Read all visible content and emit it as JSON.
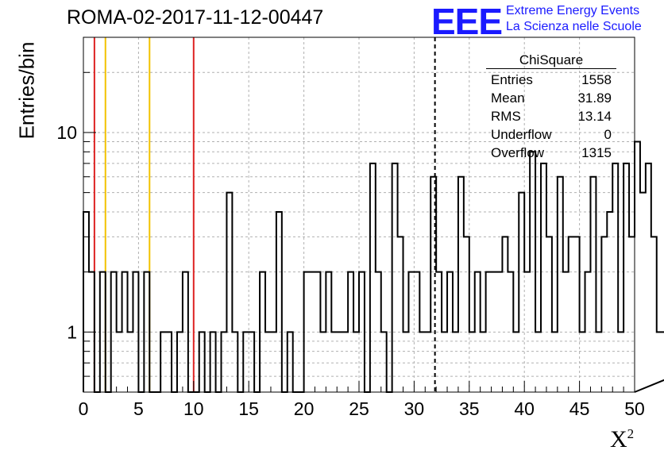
{
  "title": "ROMA-02-2017-11-12-00447",
  "logo": {
    "mark": "EEE",
    "line1": "Extreme Energy Events",
    "line2": "La Scienza nelle Scuole",
    "color": "#1a1aff"
  },
  "stats": {
    "title": "ChiSquare",
    "rows": [
      {
        "label": "Entries",
        "value": "1558"
      },
      {
        "label": "Mean",
        "value": "31.89"
      },
      {
        "label": "RMS",
        "value": "13.14"
      },
      {
        "label": "Underflow",
        "value": "0"
      },
      {
        "label": "Overflow",
        "value": "1315"
      }
    ]
  },
  "chart_data": {
    "type": "bar",
    "histogram": true,
    "title": "ROMA-02-2017-11-12-00447",
    "xlabel": "X²",
    "ylabel": "Entries/bin",
    "xlim": [
      0,
      50
    ],
    "ylim": [
      0.5,
      30
    ],
    "yscale": "log",
    "grid": true,
    "bin_width": 0.5,
    "x_ticks": [
      "0",
      "5",
      "10",
      "15",
      "20",
      "25",
      "30",
      "35",
      "40",
      "45",
      "50"
    ],
    "y_ticks": [
      "1",
      "10"
    ],
    "values": [
      4,
      2,
      0,
      2,
      0,
      2,
      1,
      2,
      1,
      2,
      0,
      2,
      0,
      0,
      1,
      1,
      0,
      1,
      2,
      0,
      0,
      1,
      0,
      1,
      0,
      1,
      5,
      1,
      0,
      1,
      1,
      0,
      2,
      1,
      1,
      4,
      0,
      1,
      0,
      0,
      2,
      2,
      2,
      1,
      2,
      1,
      1,
      1,
      2,
      1,
      2,
      0,
      7,
      2,
      1,
      0,
      7,
      3,
      1,
      2,
      2,
      1,
      1,
      6,
      2,
      1,
      2,
      1,
      6,
      3,
      1,
      2,
      1,
      2,
      2,
      2,
      3,
      2,
      1,
      5,
      2,
      8,
      1,
      7,
      3,
      1,
      6,
      2,
      3,
      3,
      1,
      2,
      6,
      1,
      3,
      4,
      7,
      1,
      7,
      3,
      9,
      5,
      7,
      3,
      1,
      1,
      0,
      0,
      1,
      2,
      6,
      1,
      2,
      2,
      7,
      7,
      2,
      0,
      9,
      3,
      2,
      8,
      7,
      3,
      2,
      6,
      2,
      2,
      5,
      16,
      2,
      9,
      7,
      3,
      2,
      2,
      8,
      9,
      5,
      11,
      7,
      2,
      2,
      1,
      1,
      4,
      1,
      7,
      4,
      11,
      9,
      4,
      3,
      1,
      2,
      0,
      1,
      1,
      1,
      0,
      0,
      0,
      2,
      0,
      1,
      2,
      5,
      6,
      5,
      3,
      2,
      11,
      2,
      12,
      1,
      4,
      8,
      5,
      7,
      4
    ],
    "values_note_removed": true,
    "lines": [
      {
        "x": 1,
        "color": "#dd2222"
      },
      {
        "x": 2,
        "color": "#f2c200"
      },
      {
        "x": 6,
        "color": "#f2c200"
      },
      {
        "x": 10,
        "color": "#dd2222"
      },
      {
        "x": 31.89,
        "color": "#000000",
        "dashed": true
      }
    ]
  }
}
